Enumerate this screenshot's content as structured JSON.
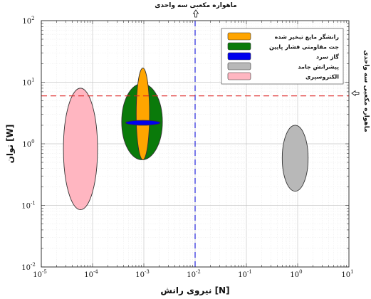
{
  "chart_data": {
    "type": "scatter",
    "title": "",
    "xlabel": "نیروی رانش [N]",
    "ylabel": "توان [W]",
    "xscale": "log",
    "yscale": "log",
    "xlim": [
      1e-05,
      10
    ],
    "ylim": [
      0.01,
      100
    ],
    "grid": true,
    "legend_position": "top-right",
    "x_ticks": [
      {
        "base": "10",
        "exp": "-5",
        "value": 1e-05
      },
      {
        "base": "10",
        "exp": "-4",
        "value": 0.0001
      },
      {
        "base": "10",
        "exp": "-3",
        "value": 0.001
      },
      {
        "base": "10",
        "exp": "-2",
        "value": 0.01
      },
      {
        "base": "10",
        "exp": "-1",
        "value": 0.1
      },
      {
        "base": "10",
        "exp": "0",
        "value": 1
      },
      {
        "base": "10",
        "exp": "1",
        "value": 10
      }
    ],
    "y_ticks": [
      {
        "base": "10",
        "exp": "-2",
        "value": 0.01
      },
      {
        "base": "10",
        "exp": "-1",
        "value": 0.1
      },
      {
        "base": "10",
        "exp": "0",
        "value": 1
      },
      {
        "base": "10",
        "exp": "1",
        "value": 10
      },
      {
        "base": "10",
        "exp": "2",
        "value": 100
      }
    ],
    "series": [
      {
        "name": "رانشگر مایع تبخیر شده",
        "color": "#FFA500",
        "thrust_range_N": [
          0.00071,
          0.00129
        ],
        "power_range_W": [
          0.55,
          17
        ]
      },
      {
        "name": "جت مقاومتی فشار پایین",
        "color": "#0A7A0A",
        "thrust_range_N": [
          0.00037,
          0.0023
        ],
        "power_range_W": [
          0.55,
          9.5
        ]
      },
      {
        "name": "گاز سرد",
        "color": "#0000EE",
        "thrust_range_N": [
          0.00044,
          0.0021
        ],
        "power_range_W": [
          2.0,
          2.4
        ]
      },
      {
        "name": "پیشرانش جامد",
        "color": "#B8B8B8",
        "thrust_range_N": [
          0.5,
          1.6
        ],
        "power_range_W": [
          0.17,
          2.0
        ]
      },
      {
        "name": "الکتروسپری",
        "color": "#FFB6C1",
        "thrust_range_N": [
          2.7e-05,
          0.000125
        ],
        "power_range_W": [
          0.085,
          8.0
        ]
      }
    ],
    "reference_lines": [
      {
        "axis": "x",
        "value": 0.01,
        "color": "#3333DD",
        "style": "dashed",
        "label": "ماهواره مکعبی سه واحدی",
        "label_position": "top"
      },
      {
        "axis": "y",
        "value": 6,
        "color": "#DD2222",
        "style": "dashed",
        "label": "ماهواره مکعبی سه واحدی",
        "label_position": "right"
      }
    ]
  }
}
